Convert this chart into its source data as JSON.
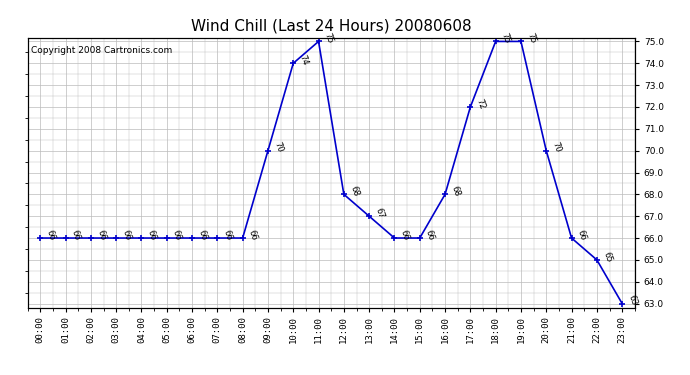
{
  "title": "Wind Chill (Last 24 Hours) 20080608",
  "copyright": "Copyright 2008 Cartronics.com",
  "hours": [
    0,
    1,
    2,
    3,
    4,
    5,
    6,
    7,
    8,
    9,
    10,
    11,
    12,
    13,
    14,
    15,
    16,
    17,
    18,
    19,
    20,
    21,
    22,
    23
  ],
  "values": [
    66,
    66,
    66,
    66,
    66,
    66,
    66,
    66,
    66,
    70,
    74,
    75,
    68,
    67,
    66,
    66,
    68,
    72,
    75,
    75,
    70,
    66,
    65,
    63
  ],
  "line_color": "#0000cc",
  "marker_color": "#0000cc",
  "bg_color": "#ffffff",
  "plot_bg_color": "#ffffff",
  "grid_color": "#bbbbbb",
  "ylim_min": 63.0,
  "ylim_max": 75.0,
  "title_fontsize": 11,
  "copyright_fontsize": 6.5,
  "annotation_fontsize": 6,
  "tick_fontsize": 6.5
}
